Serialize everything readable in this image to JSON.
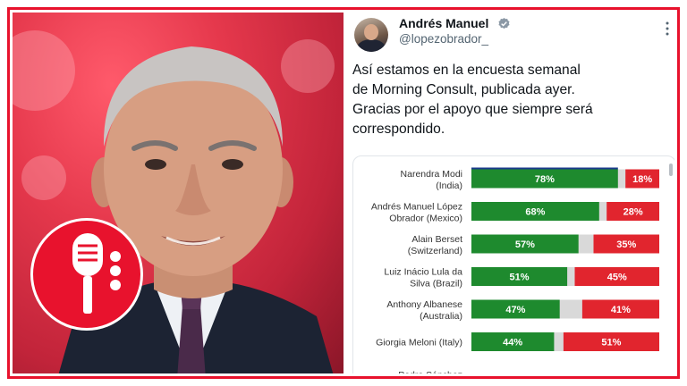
{
  "tweet": {
    "display_name": "Andrés Manuel",
    "handle": "@lopezobrador_",
    "text_lines": [
      "Así estamos en la encuesta semanal",
      "de Morning Consult, publicada ayer.",
      "Gracias por el apoyo que siempre será",
      "correspondido."
    ],
    "icons": {
      "verified": "verified-badge-icon",
      "more": "more-options-icon",
      "logo": "microphone-icon"
    }
  },
  "colors": {
    "border": "#e8122d",
    "approve": "#1e8a2e",
    "disapprove": "#e1252e",
    "neutral": "#d9d9d9"
  },
  "chart_data": {
    "type": "bar",
    "orientation": "horizontal-stacked",
    "series": [
      {
        "name": "approve",
        "color": "#1e8a2e"
      },
      {
        "name": "disapprove",
        "color": "#e1252e"
      }
    ],
    "rows": [
      {
        "label": [
          "Narendra Modi",
          "(India)"
        ],
        "approve": 78,
        "disapprove": 18
      },
      {
        "label": [
          "Andrés Manuel López",
          "Obrador (Mexico)"
        ],
        "approve": 68,
        "disapprove": 28
      },
      {
        "label": [
          "Alain Berset",
          "(Switzerland)"
        ],
        "approve": 57,
        "disapprove": 35
      },
      {
        "label": [
          "Luiz Inácio Lula da",
          "Silva (Brazil)"
        ],
        "approve": 51,
        "disapprove": 45
      },
      {
        "label": [
          "Anthony Albanese",
          "(Australia)"
        ],
        "approve": 47,
        "disapprove": 41
      },
      {
        "label": [
          "Giorgia Meloni (Italy)"
        ],
        "approve": 44,
        "disapprove": 51
      },
      {
        "label": [
          "Pedro Sánchez"
        ],
        "approve": null,
        "disapprove": null
      }
    ],
    "value_suffix": "%",
    "xlim": [
      0,
      100
    ]
  }
}
